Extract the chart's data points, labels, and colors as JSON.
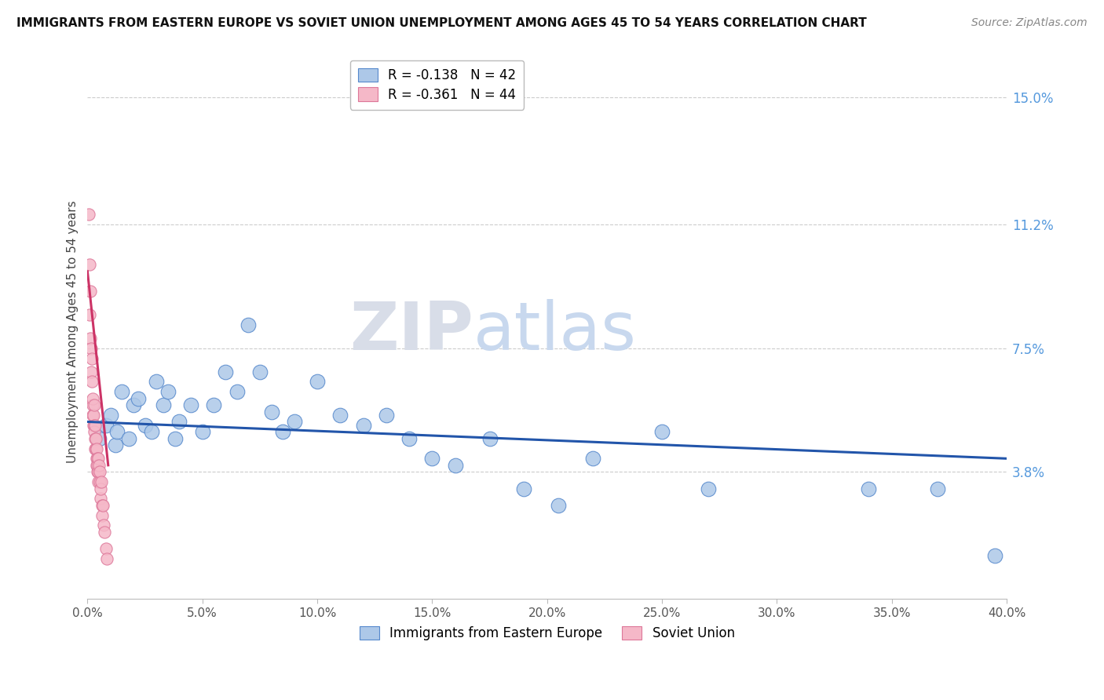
{
  "title": "IMMIGRANTS FROM EASTERN EUROPE VS SOVIET UNION UNEMPLOYMENT AMONG AGES 45 TO 54 YEARS CORRELATION CHART",
  "source": "Source: ZipAtlas.com",
  "ylabel": "Unemployment Among Ages 45 to 54 years",
  "xlim": [
    0.0,
    0.4
  ],
  "ylim": [
    0.0,
    0.16
  ],
  "xtick_labels": [
    "0.0%",
    "",
    "",
    "",
    "",
    "",
    "",
    "",
    "5.0%",
    "",
    "",
    "",
    "",
    "",
    "",
    "",
    "10.0%",
    "",
    "",
    "",
    "",
    "",
    "",
    "",
    "15.0%",
    "",
    "",
    "",
    "",
    "",
    "",
    "",
    "20.0%",
    "",
    "",
    "",
    "",
    "",
    "",
    "",
    "25.0%",
    "",
    "",
    "",
    "",
    "",
    "",
    "",
    "30.0%",
    "",
    "",
    "",
    "",
    "",
    "",
    "",
    "35.0%",
    "",
    "",
    "",
    "",
    "",
    "",
    "",
    "40.0%"
  ],
  "xtick_values_major": [
    0.0,
    0.05,
    0.1,
    0.15,
    0.2,
    0.25,
    0.3,
    0.35,
    0.4
  ],
  "ytick_labels_right": [
    "3.8%",
    "7.5%",
    "11.2%",
    "15.0%"
  ],
  "ytick_values_right": [
    0.038,
    0.075,
    0.112,
    0.15
  ],
  "blue_R": -0.138,
  "blue_N": 42,
  "pink_R": -0.361,
  "pink_N": 44,
  "blue_color": "#adc8e8",
  "blue_edge_color": "#5588cc",
  "blue_line_color": "#2255aa",
  "pink_color": "#f5b8c8",
  "pink_edge_color": "#dd7799",
  "pink_line_color": "#cc3366",
  "legend_label_blue": "Immigrants from Eastern Europe",
  "legend_label_pink": "Soviet Union",
  "watermark_zip": "ZIP",
  "watermark_atlas": "atlas",
  "blue_scatter_x": [
    0.005,
    0.008,
    0.01,
    0.012,
    0.013,
    0.015,
    0.018,
    0.02,
    0.022,
    0.025,
    0.028,
    0.03,
    0.033,
    0.035,
    0.038,
    0.04,
    0.045,
    0.05,
    0.055,
    0.06,
    0.065,
    0.07,
    0.075,
    0.08,
    0.085,
    0.09,
    0.1,
    0.11,
    0.12,
    0.13,
    0.14,
    0.15,
    0.16,
    0.175,
    0.19,
    0.205,
    0.22,
    0.25,
    0.27,
    0.34,
    0.37,
    0.395
  ],
  "blue_scatter_y": [
    0.048,
    0.052,
    0.055,
    0.046,
    0.05,
    0.062,
    0.048,
    0.058,
    0.06,
    0.052,
    0.05,
    0.065,
    0.058,
    0.062,
    0.048,
    0.053,
    0.058,
    0.05,
    0.058,
    0.068,
    0.062,
    0.082,
    0.068,
    0.056,
    0.05,
    0.053,
    0.065,
    0.055,
    0.052,
    0.055,
    0.048,
    0.042,
    0.04,
    0.048,
    0.033,
    0.028,
    0.042,
    0.05,
    0.033,
    0.033,
    0.033,
    0.013
  ],
  "pink_scatter_x": [
    0.0005,
    0.0008,
    0.001,
    0.0012,
    0.0013,
    0.0015,
    0.0017,
    0.0018,
    0.002,
    0.0022,
    0.0023,
    0.0024,
    0.0025,
    0.0026,
    0.0028,
    0.0029,
    0.003,
    0.0032,
    0.0033,
    0.0034,
    0.0035,
    0.0036,
    0.0038,
    0.0039,
    0.004,
    0.0042,
    0.0043,
    0.0044,
    0.0045,
    0.0046,
    0.0048,
    0.005,
    0.0052,
    0.0054,
    0.0056,
    0.0058,
    0.006,
    0.0062,
    0.0065,
    0.0068,
    0.007,
    0.0075,
    0.008,
    0.0085
  ],
  "pink_scatter_y": [
    0.115,
    0.1,
    0.085,
    0.092,
    0.078,
    0.075,
    0.068,
    0.072,
    0.065,
    0.058,
    0.06,
    0.055,
    0.052,
    0.055,
    0.058,
    0.052,
    0.05,
    0.045,
    0.048,
    0.052,
    0.045,
    0.048,
    0.042,
    0.04,
    0.045,
    0.038,
    0.042,
    0.04,
    0.038,
    0.042,
    0.035,
    0.04,
    0.035,
    0.038,
    0.03,
    0.033,
    0.035,
    0.028,
    0.025,
    0.028,
    0.022,
    0.02,
    0.015,
    0.012
  ],
  "blue_line_x0": 0.0,
  "blue_line_x1": 0.4,
  "blue_line_y0": 0.053,
  "blue_line_y1": 0.042,
  "pink_line_x0": 0.0,
  "pink_line_x1": 0.009,
  "pink_line_y0": 0.098,
  "pink_line_y1": 0.04
}
